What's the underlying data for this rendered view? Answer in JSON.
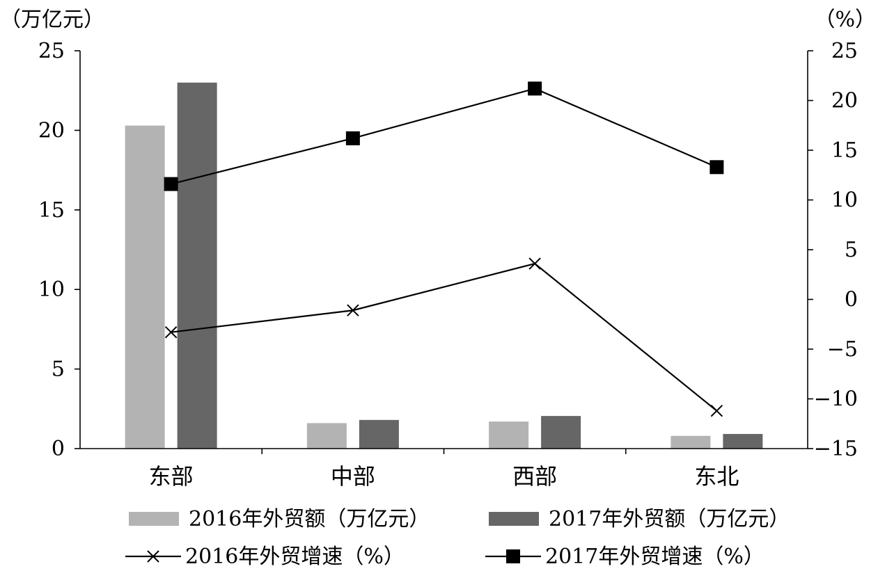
{
  "chart_data": {
    "type": "bar",
    "title": "",
    "categories": [
      "东部",
      "中部",
      "西部",
      "东北"
    ],
    "left_axis": {
      "unit_label": "（万亿元）",
      "ylim": [
        0,
        25
      ],
      "ticks": [
        "0",
        "5",
        "10",
        "15",
        "20",
        "25"
      ]
    },
    "right_axis": {
      "unit_label": "（%）",
      "ylim": [
        -15,
        25
      ],
      "ticks": [
        "−15",
        "−10",
        "−5",
        "0",
        "5",
        "10",
        "15",
        "20",
        "25"
      ]
    },
    "series": [
      {
        "name": "2016年外贸额（万亿元）",
        "type": "bar",
        "axis": "left",
        "color": "#b3b3b3",
        "values": [
          20.3,
          1.6,
          1.7,
          0.8
        ]
      },
      {
        "name": "2017年外贸额（万亿元）",
        "type": "bar",
        "axis": "left",
        "color": "#666666",
        "values": [
          23.0,
          1.8,
          2.05,
          0.92
        ]
      },
      {
        "name": "2016年外贸增速（%）",
        "type": "line",
        "marker": "x",
        "axis": "right",
        "color": "#000000",
        "values": [
          -3.3,
          -1.1,
          3.6,
          -11.2
        ]
      },
      {
        "name": "2017年外贸增速（%）",
        "type": "line",
        "marker": "square",
        "axis": "right",
        "color": "#000000",
        "values": [
          11.6,
          16.2,
          21.2,
          13.3
        ]
      }
    ],
    "grid": false,
    "legend_position": "bottom"
  }
}
